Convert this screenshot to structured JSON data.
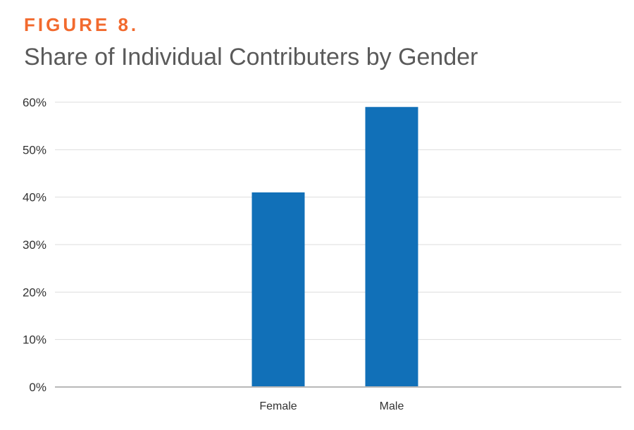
{
  "header": {
    "figure_label": "FIGURE 8.",
    "title": "Share of Individual Contributers by Gender"
  },
  "colors": {
    "accent": "#f26a2e",
    "bar": "#1170b8",
    "gridline": "#dddddd",
    "baseline": "#b8b8b8"
  },
  "chart_data": {
    "type": "bar",
    "title": "Share of Individual Contributers by Gender",
    "categories": [
      "Female",
      "Male"
    ],
    "values": [
      41,
      59
    ],
    "unit": "%",
    "ylim": [
      0,
      60
    ],
    "yticks": [
      0,
      10,
      20,
      30,
      40,
      50,
      60
    ],
    "ytick_labels": [
      "0%",
      "10%",
      "20%",
      "30%",
      "40%",
      "50%",
      "60%"
    ],
    "grid": true,
    "legend": false
  }
}
